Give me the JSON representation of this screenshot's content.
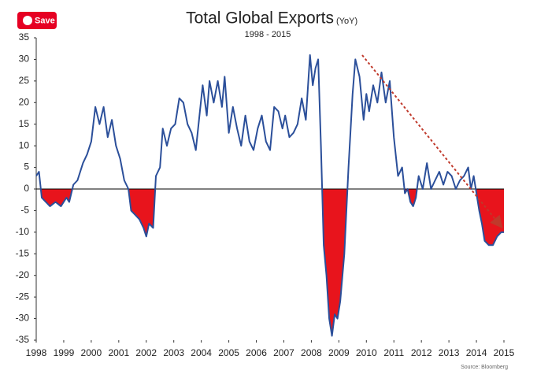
{
  "save_button": "Save",
  "chart_data": {
    "type": "line",
    "title": "Total Global Exports",
    "title_unit": "(YoY)",
    "subtitle": "1998 - 2015",
    "source": "Source: Bloomberg",
    "x": [
      1998.0,
      1998.1,
      1998.2,
      1998.35,
      1998.5,
      1998.7,
      1998.9,
      1999.1,
      1999.2,
      1999.35,
      1999.5,
      1999.7,
      1999.85,
      2000.0,
      2000.15,
      2000.3,
      2000.45,
      2000.6,
      2000.75,
      2000.9,
      2001.05,
      2001.2,
      2001.35,
      2001.45,
      2001.6,
      2001.75,
      2001.9,
      2002.0,
      2002.1,
      2002.25,
      2002.35,
      2002.5,
      2002.6,
      2002.75,
      2002.9,
      2003.05,
      2003.2,
      2003.35,
      2003.5,
      2003.65,
      2003.8,
      2003.95,
      2004.05,
      2004.2,
      2004.3,
      2004.45,
      2004.6,
      2004.75,
      2004.85,
      2005.0,
      2005.15,
      2005.3,
      2005.45,
      2005.6,
      2005.75,
      2005.9,
      2006.05,
      2006.2,
      2006.35,
      2006.5,
      2006.65,
      2006.8,
      2006.95,
      2007.05,
      2007.2,
      2007.35,
      2007.5,
      2007.65,
      2007.8,
      2007.95,
      2008.05,
      2008.15,
      2008.25,
      2008.35,
      2008.45,
      2008.55,
      2008.65,
      2008.75,
      2008.85,
      2008.95,
      2009.05,
      2009.2,
      2009.35,
      2009.5,
      2009.6,
      2009.75,
      2009.9,
      2010.0,
      2010.1,
      2010.25,
      2010.4,
      2010.55,
      2010.7,
      2010.85,
      2011.0,
      2011.15,
      2011.3,
      2011.4,
      2011.5,
      2011.6,
      2011.7,
      2011.8,
      2011.9,
      2012.05,
      2012.2,
      2012.35,
      2012.5,
      2012.65,
      2012.8,
      2012.95,
      2013.1,
      2013.25,
      2013.4,
      2013.55,
      2013.7,
      2013.8,
      2013.9,
      2014.0,
      2014.1,
      2014.2,
      2014.3,
      2014.45,
      2014.6,
      2014.75,
      2014.9,
      2015.0
    ],
    "series": [
      {
        "name": "Exports YoY",
        "color": "#2b4f9a",
        "negative_fill": "#e8141c",
        "values": [
          3,
          4,
          -2,
          -3,
          -4,
          -3,
          -4,
          -2,
          -3,
          1,
          2,
          6,
          8,
          11,
          19,
          15,
          19,
          12,
          16,
          10,
          7,
          2,
          0,
          -5,
          -6,
          -7,
          -9,
          -11,
          -8,
          -9,
          3,
          5,
          14,
          10,
          14,
          15,
          21,
          20,
          15,
          13,
          9,
          18,
          24,
          17,
          25,
          20,
          25,
          19,
          26,
          13,
          19,
          14,
          10,
          17,
          11,
          9,
          14,
          17,
          11,
          9,
          19,
          18,
          14,
          17,
          12,
          13,
          15,
          21,
          16,
          31,
          24,
          28,
          30,
          10,
          -13,
          -20,
          -30,
          -34,
          -29,
          -30,
          -26,
          -15,
          5,
          22,
          30,
          26,
          16,
          22,
          18,
          24,
          20,
          27,
          20,
          25,
          12,
          3,
          5,
          -1,
          0,
          -3,
          -4,
          -2,
          3,
          0,
          6,
          0,
          2,
          4,
          1,
          4,
          3,
          0,
          2,
          3,
          5,
          0,
          3,
          -1,
          -5,
          -8,
          -12,
          -13,
          -13,
          -11,
          -10,
          -10
        ]
      }
    ],
    "xlim": [
      1998,
      2015
    ],
    "xticks": [
      1998,
      1999,
      2000,
      2001,
      2002,
      2003,
      2004,
      2005,
      2006,
      2007,
      2008,
      2009,
      2010,
      2011,
      2012,
      2013,
      2014,
      2015
    ],
    "ylim": [
      -35,
      35
    ],
    "yticks": [
      -35,
      -30,
      -25,
      -20,
      -15,
      -10,
      -5,
      0,
      5,
      10,
      15,
      20,
      25,
      30,
      35
    ]
  }
}
